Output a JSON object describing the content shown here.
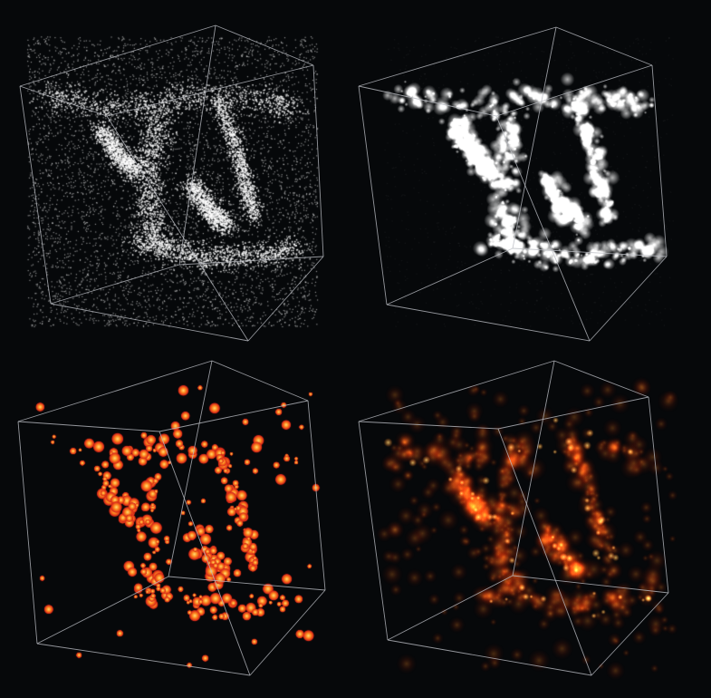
{
  "figure": {
    "background": "#06080a",
    "edge_color": "#b9bcc2",
    "panels": [
      {
        "id": "points",
        "style": "white-points"
      },
      {
        "id": "smooth-white",
        "style": "white-glow"
      },
      {
        "id": "hot-blobs",
        "style": "hot-blobs"
      },
      {
        "id": "hot-smooth",
        "style": "hot-glow"
      }
    ]
  }
}
